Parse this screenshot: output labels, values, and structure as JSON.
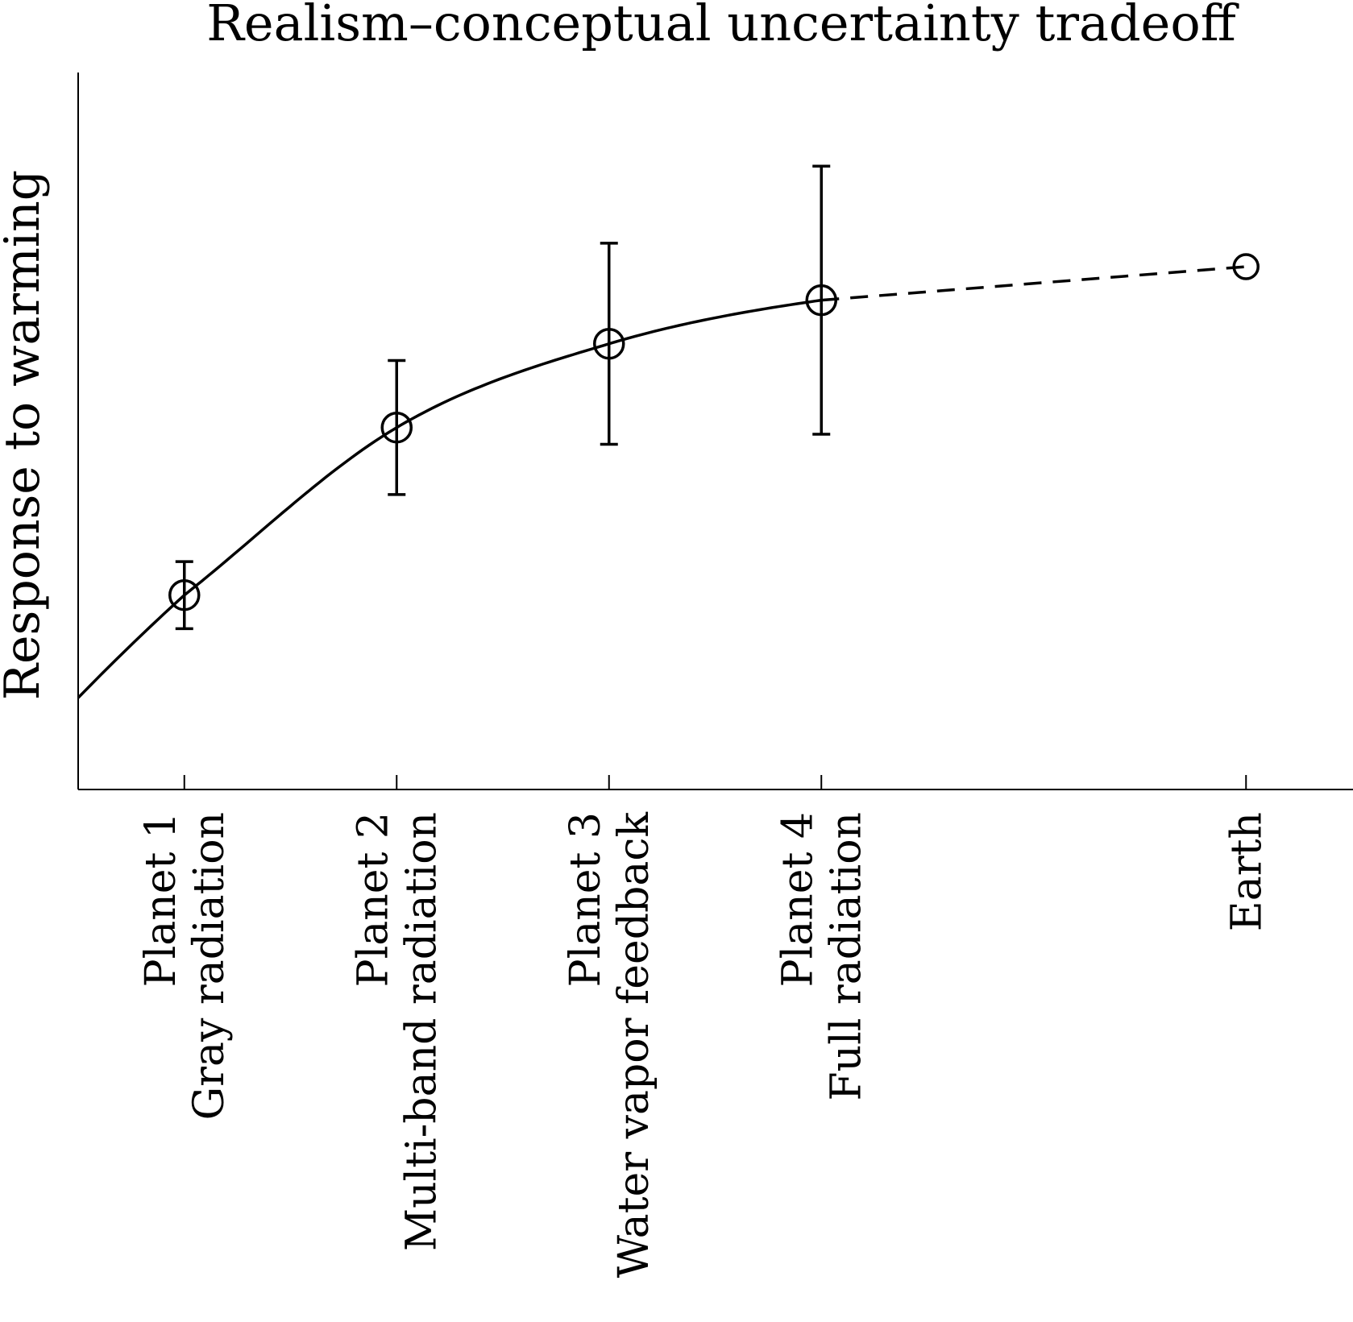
{
  "chart_data": {
    "type": "scatter",
    "title": "Realism–conceptual uncertainty tradeoff",
    "ylabel": "Response to warming",
    "xlabel": "",
    "xlim": [
      0,
      6
    ],
    "ylim": [
      0,
      10
    ],
    "grid": false,
    "legend": "none",
    "categories": [
      {
        "x": 0.5,
        "label_lines": [
          "Planet 1",
          "Gray radiation"
        ]
      },
      {
        "x": 1.5,
        "label_lines": [
          "Planet 2",
          "Multi-band radiation"
        ]
      },
      {
        "x": 2.5,
        "label_lines": [
          "Planet 3",
          "Water vapor feedback"
        ]
      },
      {
        "x": 3.5,
        "label_lines": [
          "Planet 4",
          "Full radiation"
        ]
      },
      {
        "x": 5.5,
        "label_lines": [
          "Earth"
        ]
      }
    ],
    "points": [
      {
        "x": 0.5,
        "y": 2.9,
        "err_low": 2.4,
        "err_high": 3.4
      },
      {
        "x": 1.5,
        "y": 5.4,
        "err_low": 4.4,
        "err_high": 6.4
      },
      {
        "x": 2.5,
        "y": 6.65,
        "err_low": 5.15,
        "err_high": 8.15
      },
      {
        "x": 3.5,
        "y": 7.3,
        "err_low": 5.3,
        "err_high": 9.3
      },
      {
        "x": 5.5,
        "y": 7.8
      }
    ],
    "trend": {
      "solid_x_range": [
        0,
        3.5
      ],
      "dashed_x_range": [
        3.5,
        5.5
      ]
    },
    "colors": {
      "line": "#000000",
      "background": "#ffffff"
    }
  }
}
